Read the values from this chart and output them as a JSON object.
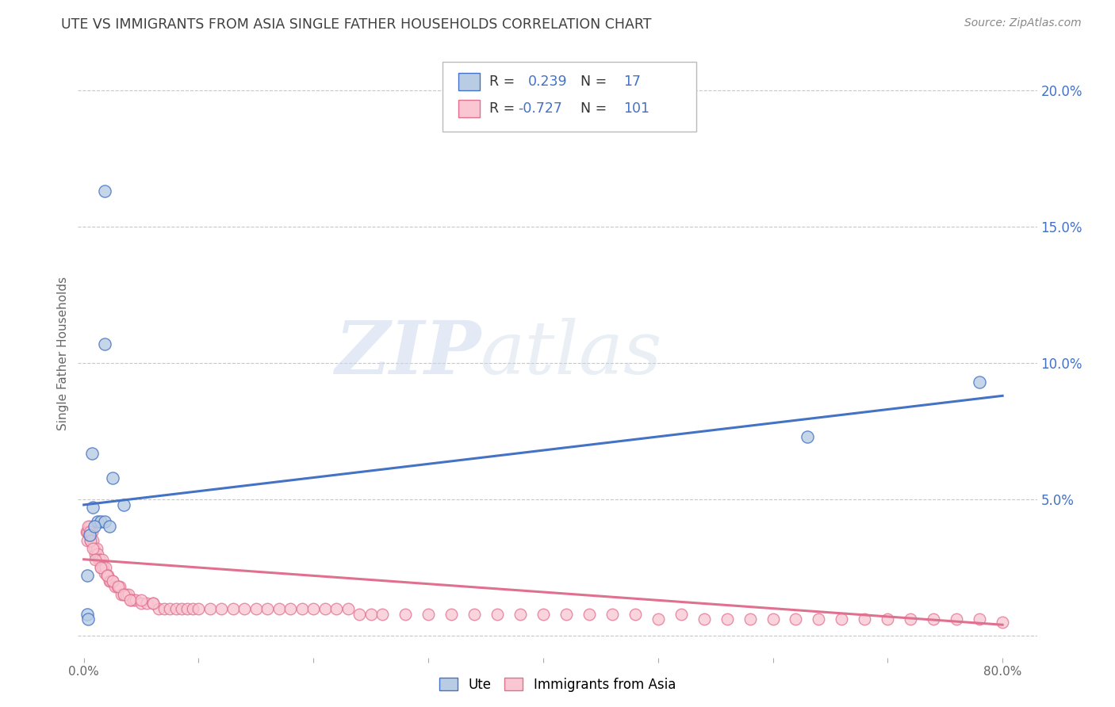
{
  "title": "UTE VS IMMIGRANTS FROM ASIA SINGLE FATHER HOUSEHOLDS CORRELATION CHART",
  "source": "Source: ZipAtlas.com",
  "ylabel": "Single Father Households",
  "xlim": [
    -0.005,
    0.83
  ],
  "ylim": [
    -0.008,
    0.215
  ],
  "xticks": [
    0.0,
    0.1,
    0.2,
    0.3,
    0.4,
    0.5,
    0.6,
    0.7,
    0.8
  ],
  "xticklabels": [
    "0.0%",
    "",
    "",
    "",
    "",
    "",
    "",
    "",
    "80.0%"
  ],
  "yticks_right": [
    0.0,
    0.05,
    0.1,
    0.15,
    0.2
  ],
  "yticklabels_right": [
    "",
    "5.0%",
    "10.0%",
    "15.0%",
    "20.0%"
  ],
  "grid_color": "#c8c8c8",
  "background_color": "#ffffff",
  "title_color": "#404040",
  "axis_color": "#4472c4",
  "ute_fill_color": "#b8cce4",
  "ute_edge_color": "#4472c4",
  "asia_fill_color": "#f9c6d1",
  "asia_edge_color": "#e07090",
  "ute_line_color": "#4472c4",
  "asia_line_color": "#e07090",
  "watermark_zip": "ZIP",
  "watermark_atlas": "atlas",
  "ute_line_x0": 0.0,
  "ute_line_y0": 0.048,
  "ute_line_x1": 0.8,
  "ute_line_y1": 0.088,
  "asia_line_x0": 0.0,
  "asia_line_y0": 0.028,
  "asia_line_x1": 0.8,
  "asia_line_y1": 0.004,
  "ute_scatter_x": [
    0.018,
    0.018,
    0.025,
    0.035,
    0.003,
    0.007,
    0.008,
    0.012,
    0.015,
    0.018,
    0.022,
    0.003,
    0.005,
    0.009,
    0.78,
    0.63,
    0.004
  ],
  "ute_scatter_y": [
    0.163,
    0.107,
    0.058,
    0.048,
    0.008,
    0.067,
    0.047,
    0.042,
    0.042,
    0.042,
    0.04,
    0.022,
    0.037,
    0.04,
    0.093,
    0.073,
    0.006
  ],
  "asia_scatter_x": [
    0.002,
    0.003,
    0.004,
    0.005,
    0.006,
    0.007,
    0.008,
    0.009,
    0.01,
    0.011,
    0.012,
    0.013,
    0.014,
    0.015,
    0.016,
    0.017,
    0.018,
    0.019,
    0.02,
    0.021,
    0.022,
    0.023,
    0.025,
    0.027,
    0.029,
    0.031,
    0.033,
    0.035,
    0.037,
    0.039,
    0.041,
    0.043,
    0.045,
    0.05,
    0.055,
    0.06,
    0.065,
    0.07,
    0.075,
    0.08,
    0.085,
    0.09,
    0.095,
    0.1,
    0.11,
    0.12,
    0.13,
    0.14,
    0.15,
    0.16,
    0.17,
    0.18,
    0.19,
    0.2,
    0.21,
    0.22,
    0.23,
    0.24,
    0.25,
    0.26,
    0.28,
    0.3,
    0.32,
    0.34,
    0.36,
    0.38,
    0.4,
    0.42,
    0.44,
    0.46,
    0.48,
    0.5,
    0.52,
    0.54,
    0.56,
    0.58,
    0.6,
    0.62,
    0.64,
    0.66,
    0.68,
    0.7,
    0.72,
    0.74,
    0.76,
    0.78,
    0.8,
    0.003,
    0.004,
    0.005,
    0.006,
    0.008,
    0.01,
    0.015,
    0.02,
    0.025,
    0.03,
    0.035,
    0.04,
    0.05,
    0.06
  ],
  "asia_scatter_y": [
    0.038,
    0.035,
    0.038,
    0.04,
    0.035,
    0.038,
    0.035,
    0.032,
    0.03,
    0.032,
    0.03,
    0.028,
    0.028,
    0.025,
    0.028,
    0.025,
    0.023,
    0.025,
    0.022,
    0.022,
    0.02,
    0.02,
    0.02,
    0.018,
    0.018,
    0.018,
    0.015,
    0.015,
    0.015,
    0.015,
    0.013,
    0.013,
    0.013,
    0.012,
    0.012,
    0.012,
    0.01,
    0.01,
    0.01,
    0.01,
    0.01,
    0.01,
    0.01,
    0.01,
    0.01,
    0.01,
    0.01,
    0.01,
    0.01,
    0.01,
    0.01,
    0.01,
    0.01,
    0.01,
    0.01,
    0.01,
    0.01,
    0.008,
    0.008,
    0.008,
    0.008,
    0.008,
    0.008,
    0.008,
    0.008,
    0.008,
    0.008,
    0.008,
    0.008,
    0.008,
    0.008,
    0.006,
    0.008,
    0.006,
    0.006,
    0.006,
    0.006,
    0.006,
    0.006,
    0.006,
    0.006,
    0.006,
    0.006,
    0.006,
    0.006,
    0.006,
    0.005,
    0.038,
    0.04,
    0.038,
    0.035,
    0.032,
    0.028,
    0.025,
    0.022,
    0.02,
    0.018,
    0.015,
    0.013,
    0.013,
    0.012
  ]
}
